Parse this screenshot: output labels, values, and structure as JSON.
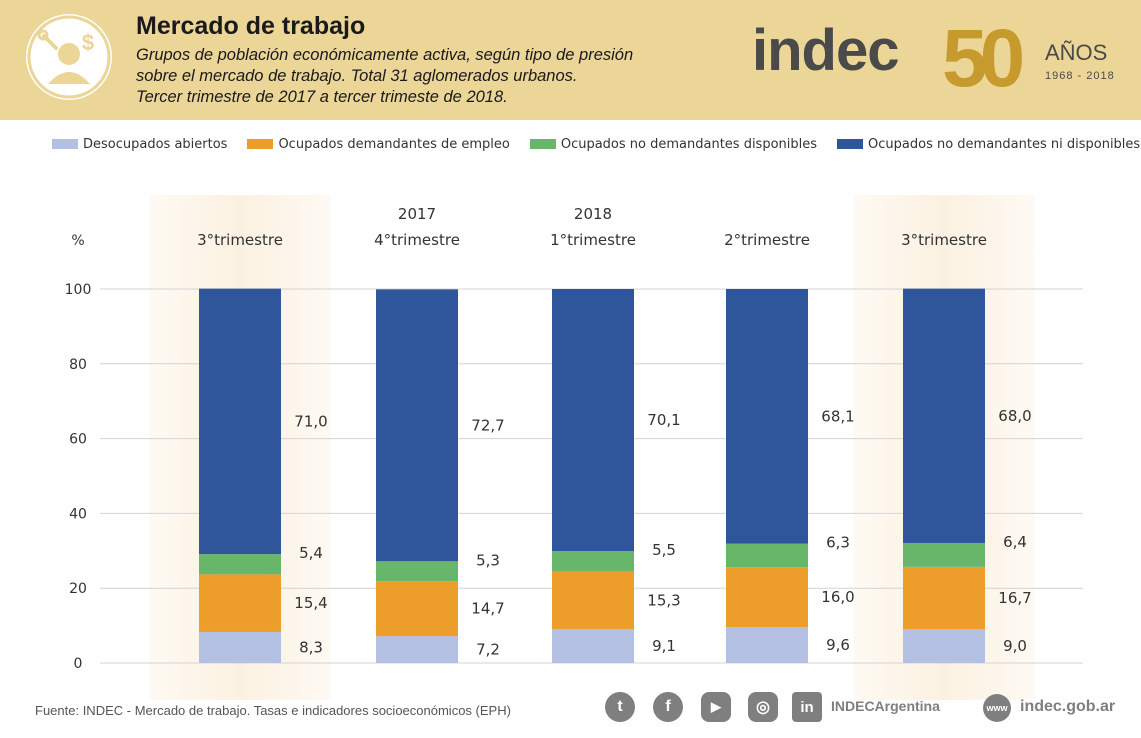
{
  "header": {
    "title": "Mercado de trabajo",
    "subtitle_line1": "Grupos de población económicamente activa, según tipo de presión",
    "subtitle_line2": "sobre el mercado de trabajo. Total 31 aglomerados urbanos.",
    "subtitle_line3": "Tercer trimestre de 2017 a tercer trimeste de 2018.",
    "logo_text": "indec",
    "logo_number": "50",
    "anos_label": "AÑOS",
    "anos_years": "1968  -  2018"
  },
  "colors": {
    "header_bg": "#ebd597",
    "highlight_bg": "#fbf1e1",
    "gold": "#c79a2e",
    "desocupados": "#b4c0e1",
    "ocupados_demandantes": "#ec9d2a",
    "ocupados_no_dem_disp": "#67b66a",
    "ocupados_no_dem_ni_disp": "#2f559b"
  },
  "legend": [
    {
      "label": "Desocupados abiertos",
      "color": "#b4c0e1"
    },
    {
      "label": "Ocupados demandantes de empleo",
      "color": "#ec9d2a"
    },
    {
      "label": "Ocupados no demandantes disponibles",
      "color": "#67b66a"
    },
    {
      "label": "Ocupados no demandantes ni disponibles",
      "color": "#2f559b"
    }
  ],
  "chart_data": {
    "type": "bar",
    "stacked": true,
    "ylabel": "%",
    "ylim": [
      0,
      100
    ],
    "yticks": [
      0,
      20,
      40,
      60,
      80,
      100
    ],
    "grid": true,
    "categories": [
      "3°trimestre",
      "4°trimestre",
      "1°trimestre",
      "2°trimestre",
      "3°trimestre"
    ],
    "year_labels": [
      "",
      "2017",
      "2018",
      "",
      ""
    ],
    "highlighted": [
      true,
      false,
      false,
      false,
      true
    ],
    "series": [
      {
        "name": "Desocupados abiertos",
        "values": [
          8.3,
          7.2,
          9.1,
          9.6,
          9.0
        ],
        "labels": [
          "8,3",
          "7,2",
          "9,1",
          "9,6",
          "9,0"
        ]
      },
      {
        "name": "Ocupados demandantes de empleo",
        "values": [
          15.4,
          14.7,
          15.3,
          16.0,
          16.7
        ],
        "labels": [
          "15,4",
          "14,7",
          "15,3",
          "16,0",
          "16,7"
        ]
      },
      {
        "name": "Ocupados no demandantes disponibles",
        "values": [
          5.4,
          5.3,
          5.5,
          6.3,
          6.4
        ],
        "labels": [
          "5,4",
          "5,3",
          "5,5",
          "6,3",
          "6,4"
        ]
      },
      {
        "name": "Ocupados no demandantes ni disponibles",
        "values": [
          71.0,
          72.7,
          70.1,
          68.1,
          68.0
        ],
        "labels": [
          "71,0",
          "72,7",
          "70,1",
          "68,1",
          "68,0"
        ]
      }
    ]
  },
  "footer": {
    "source": "Fuente: INDEC - Mercado de trabajo. Tasas e indicadores socioeconómicos (EPH)",
    "social_handle": "INDECArgentina",
    "website": "indec.gob.ar",
    "www_label": "www",
    "social_icons": [
      {
        "name": "twitter-icon",
        "glyph": "t"
      },
      {
        "name": "facebook-icon",
        "glyph": "f"
      },
      {
        "name": "youtube-icon",
        "glyph": "▶"
      },
      {
        "name": "instagram-icon",
        "glyph": "◎"
      },
      {
        "name": "linkedin-icon",
        "glyph": "in"
      }
    ]
  }
}
